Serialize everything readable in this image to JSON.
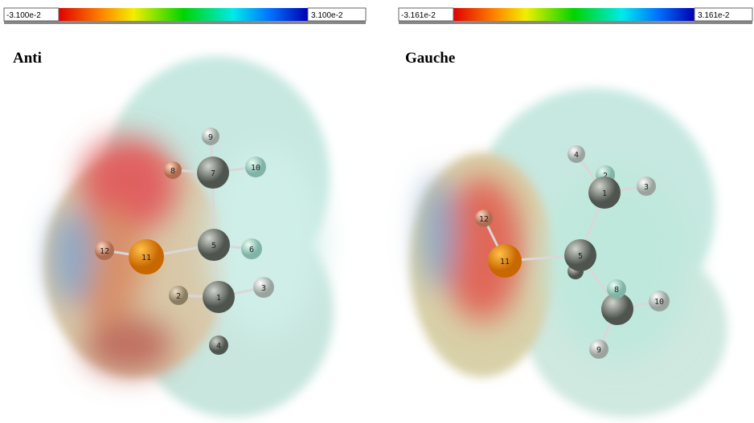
{
  "panels": [
    {
      "scale": {
        "min": "-3.100e-2",
        "max": "3.100e-2"
      },
      "title": "Anti",
      "atoms": [
        "9",
        "8",
        "7",
        "10",
        "5",
        "6",
        "12",
        "11",
        "2",
        "1",
        "3",
        "4"
      ]
    },
    {
      "scale": {
        "min": "-3.161e-2",
        "max": "3.161e-2"
      },
      "title": "Gauche",
      "atoms": [
        "4",
        "2",
        "1",
        "3",
        "12",
        "11",
        "5",
        "8",
        "10",
        "9"
      ]
    }
  ]
}
